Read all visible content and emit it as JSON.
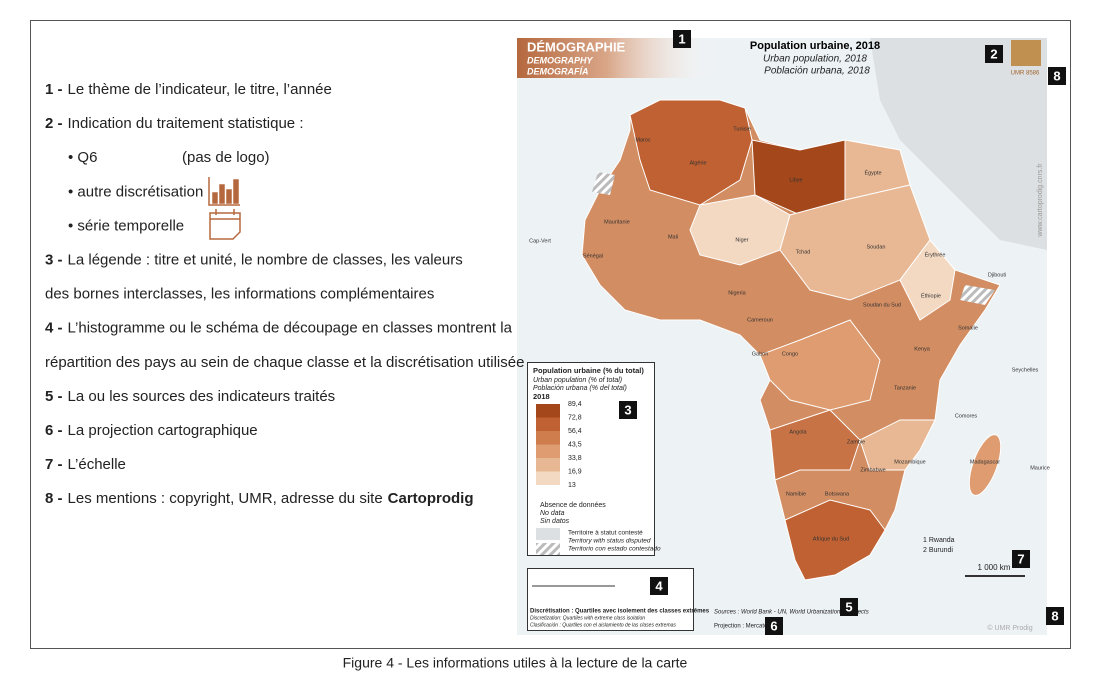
{
  "items": [
    {
      "num": "1 -",
      "lines": [
        "Le thème de l’indicateur, le titre, l’année"
      ]
    },
    {
      "num": "2 -",
      "lines": [
        "Indication du traitement statistique :"
      ],
      "bullets": [
        "• Q6",
        "• autre discrétisation",
        "• série temporelle"
      ],
      "bullet_note": "(pas de logo)"
    },
    {
      "num": "3 -",
      "lines": [
        "La légende : titre et unité, le nombre de classes, les valeurs",
        "des bornes interclasses, les informations complémentaires"
      ]
    },
    {
      "num": "4 -",
      "lines": [
        "L’histogramme ou le schéma de découpage en classes montrent la",
        "répartition des pays au sein de chaque classe et la discrétisation utilisée"
      ]
    },
    {
      "num": "5 -",
      "lines": [
        "La ou les sources des indicateurs traités"
      ]
    },
    {
      "num": "6 -",
      "lines": [
        "La projection cartographique"
      ]
    },
    {
      "num": "7 -",
      "lines": [
        "L’échelle"
      ]
    },
    {
      "num": "8 -",
      "lines": [
        "Les mentions : copyright, UMR, adresse du site"
      ],
      "bold": "Cartoprodig"
    }
  ],
  "map": {
    "header": [
      "DÉMOGRAPHIE",
      "DEMOGRAPHY",
      "DEMOGRAFÍA"
    ],
    "title": "Population urbaine, 2018",
    "subtitles": [
      "Urban population, 2018",
      "Población urbana, 2018"
    ],
    "legend": {
      "title": "Population urbaine (% du total)",
      "subtitles": [
        "Urban population (% of total)",
        "Población urbana (% del total)"
      ],
      "year": "2018",
      "breaks": [
        "89,4",
        "72,8",
        "56,4",
        "43,5",
        "33,8",
        "16,9",
        "13"
      ],
      "colors": [
        "#a4471a",
        "#bf6132",
        "#cf7d4d",
        "#de9c70",
        "#e8b793",
        "#f3d8c2"
      ],
      "no_data": [
        "Absence de données",
        "No data",
        "Sin datos"
      ],
      "disputed": [
        "Territoire à statut contesté",
        "Territory with status disputed",
        "Territorio con estado contestado"
      ]
    },
    "discretisation": [
      "Discrétisation : Quartiles avec isolement des classes extrêmes",
      "Discretization: Quartiles with extreme class isolation",
      "Clasificación : Quartiles con el aislamiento de las clases extremas"
    ],
    "sources": "Sources : World Bank - UN, World Urbanization Prospects",
    "projection": "Projection : Mercator",
    "scale": "1 000 km",
    "notes": [
      "1 Rwanda",
      "2 Burundi"
    ],
    "umr": "UMR 8586",
    "site": "www.cartoprodig.cnrs.fr",
    "copyright": "© UMR Prodig",
    "countries": [
      "Maroc",
      "Algérie",
      "Tunisie",
      "Libye",
      "Égypte",
      "Mauritanie",
      "Mali",
      "Niger",
      "Tchad",
      "Soudan",
      "Sénégal",
      "Nigeria",
      "Cameroun",
      "Éthiopie",
      "Somalie",
      "Kenya",
      "Tanzanie",
      "Angola",
      "Zambie",
      "Namibie",
      "Botswana",
      "Afrique du Sud",
      "Madagascar",
      "Mozambique",
      "Zimbabwe",
      "Gabon",
      "Congo",
      "Soudan du Sud",
      "Érythrée",
      "Djibouti",
      "Cap-Vert",
      "Seychelles",
      "Comores",
      "Maurice"
    ],
    "badges": [
      "1",
      "2",
      "3",
      "4",
      "5",
      "6",
      "7",
      "8",
      "8"
    ]
  },
  "caption": "Figure 4 - Les informations utiles à la lecture de la carte"
}
